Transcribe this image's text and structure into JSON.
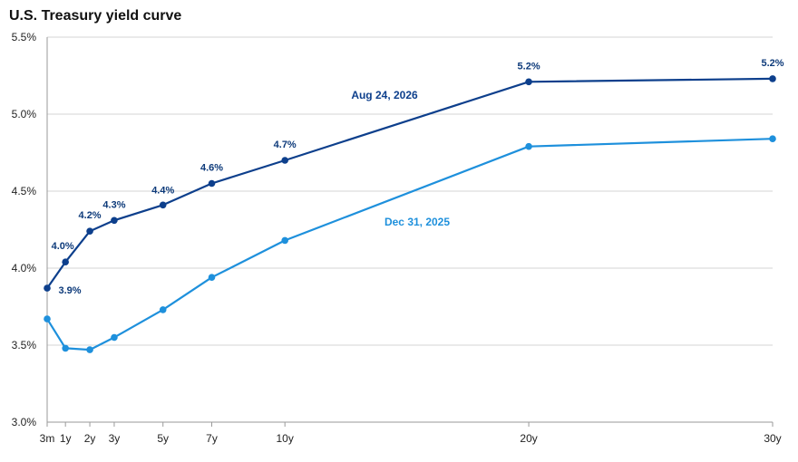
{
  "chart_data": {
    "type": "line",
    "title": "U.S. Treasury yield curve",
    "xlabel": "",
    "ylabel": "",
    "ylim": [
      3.0,
      5.5
    ],
    "y_ticks": [
      "3.0%",
      "3.5%",
      "4.0%",
      "4.5%",
      "5.0%",
      "5.5%"
    ],
    "categories": [
      "3m",
      "1y",
      "2y",
      "3y",
      "5y",
      "7y",
      "10y",
      "20y",
      "30y"
    ],
    "x_years": [
      0.25,
      1,
      2,
      3,
      5,
      7,
      10,
      20,
      30
    ],
    "grid": "horizontal",
    "series": [
      {
        "name": "Aug 24, 2026",
        "color": "#0d3f8c",
        "values": [
          3.87,
          4.04,
          4.24,
          4.31,
          4.41,
          4.55,
          4.7,
          5.21,
          5.23
        ],
        "data_labels": [
          "3.9%",
          "4.0%",
          "4.2%",
          "4.3%",
          "4.4%",
          "4.6%",
          "4.7%",
          "5.2%",
          "5.2%"
        ]
      },
      {
        "name": "Dec 31, 2025",
        "color": "#1e90dc",
        "values": [
          3.67,
          3.48,
          3.47,
          3.55,
          3.73,
          3.94,
          4.18,
          4.79,
          4.84
        ],
        "data_labels": []
      }
    ]
  }
}
